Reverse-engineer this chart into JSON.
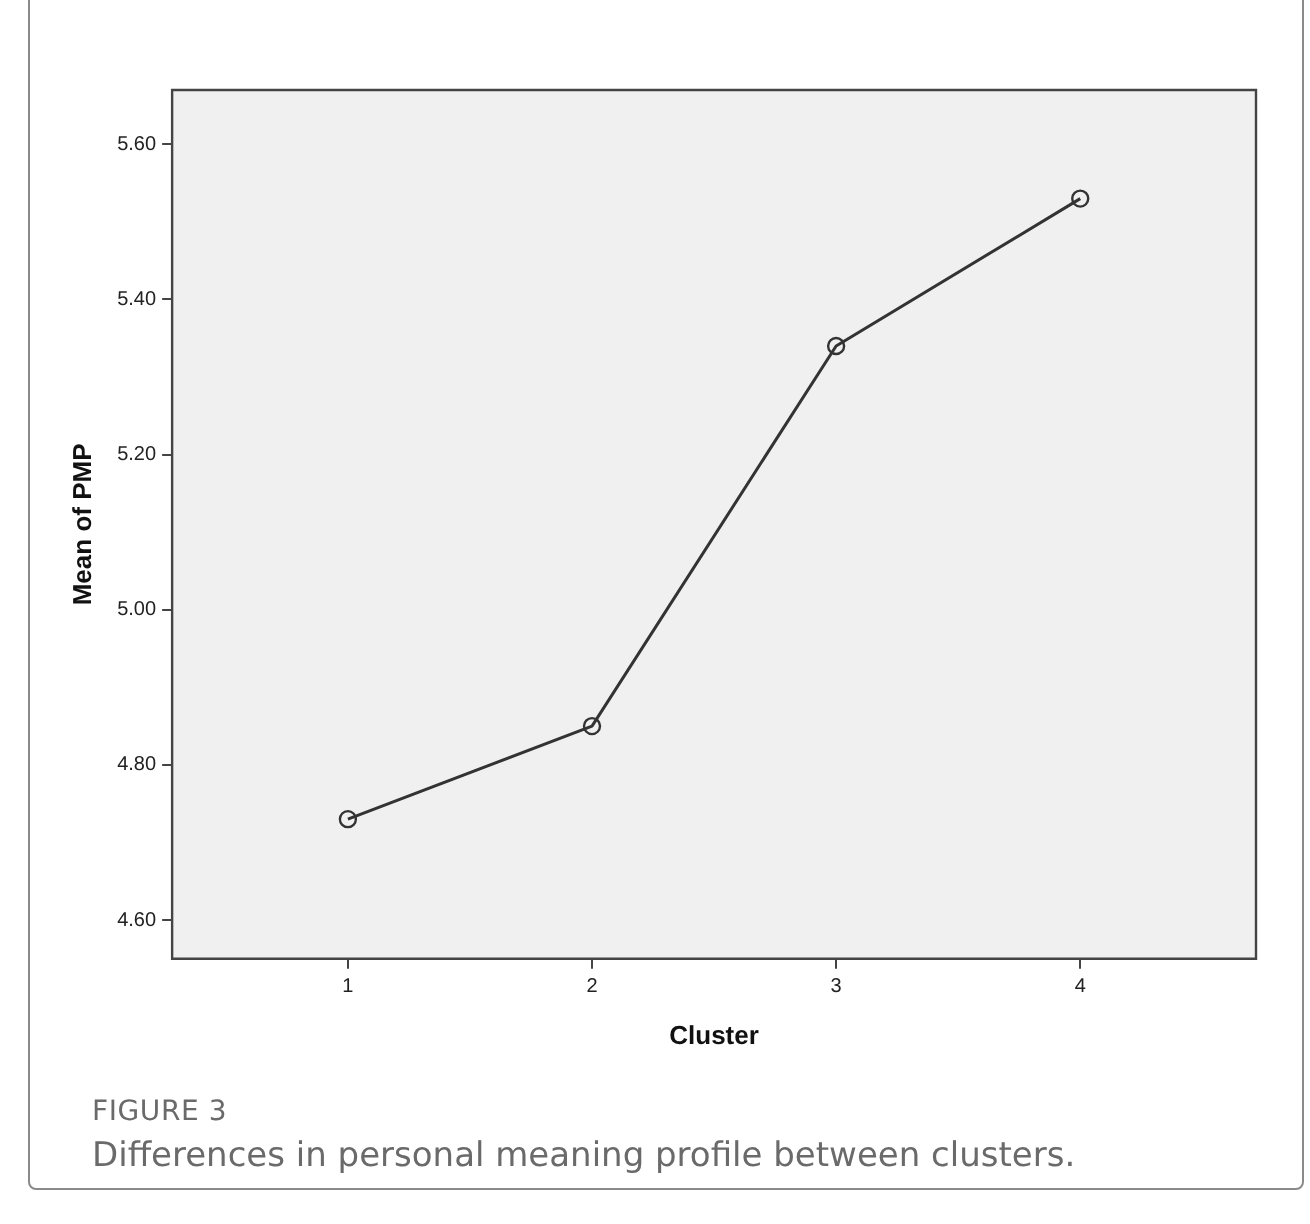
{
  "chart_data": {
    "type": "line",
    "x": [
      1,
      2,
      3,
      4
    ],
    "values": [
      4.73,
      4.85,
      5.34,
      5.53
    ],
    "color": "#333333",
    "xlim": [
      0.28,
      4.72
    ],
    "xticks": [
      1,
      2,
      3,
      4
    ],
    "ylim": [
      4.55,
      5.67
    ],
    "yticks": [
      {
        "value": 4.6,
        "label": "4.60"
      },
      {
        "value": 4.8,
        "label": "4.80"
      },
      {
        "value": 5.0,
        "label": "5.00"
      },
      {
        "value": 5.2,
        "label": "5.20"
      },
      {
        "value": 5.4,
        "label": "5.40"
      },
      {
        "value": 5.6,
        "label": "5.60"
      }
    ],
    "xlabel": "Cluster",
    "ylabel": "Mean of PMP",
    "marker": "circle",
    "line_style": "solid",
    "grid": false,
    "legend": false,
    "annotations": [
      "FIGURE 3",
      "Differences in personal meaning profile between clusters."
    ]
  }
}
